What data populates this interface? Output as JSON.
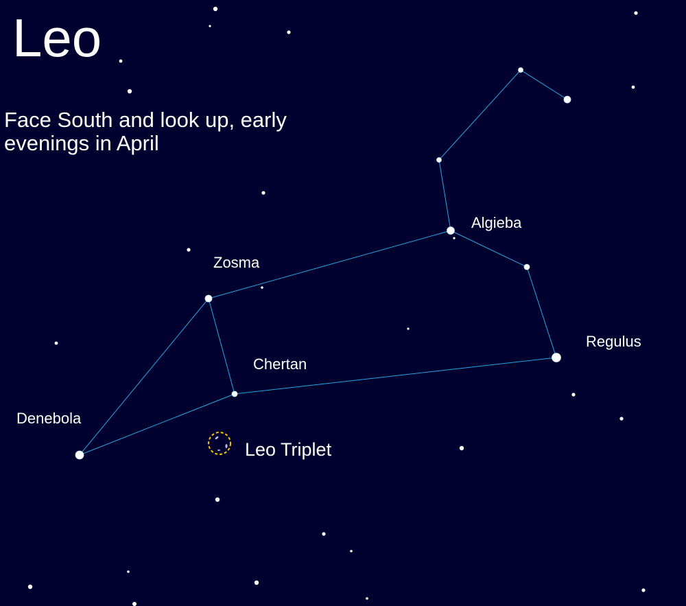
{
  "title": "Leo",
  "subtitle": "Face South and look up, early evenings in April",
  "colors": {
    "background": "#01012f",
    "constellation_line": "#29a8e0",
    "star": "#ffffff",
    "galaxy_marker": "#f5c400"
  },
  "labels": {
    "algieba": "Algieba",
    "zosma": "Zosma",
    "regulus": "Regulus",
    "chertan": "Chertan",
    "denebola": "Denebola",
    "leo_triplet": "Leo Triplet"
  }
}
